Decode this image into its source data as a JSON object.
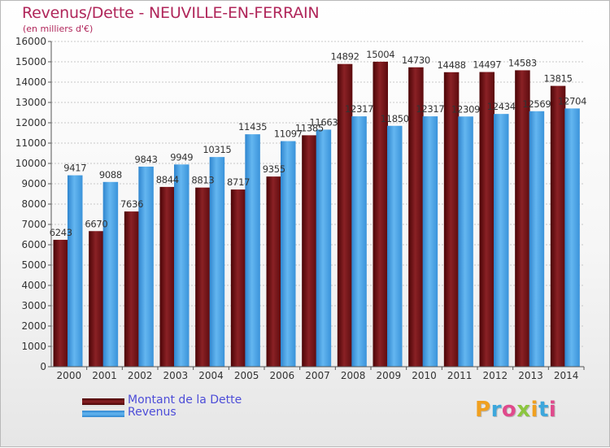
{
  "header": {
    "title": "Revenus/Dette - NEUVILLE-EN-FERRAIN",
    "subtitle": "(en milliers d'€)"
  },
  "brand": "Proxiti",
  "colors": {
    "debt": "#7a1518",
    "revenue": "#4fa6e6",
    "title": "#b0265a",
    "legend_text": "#4d4dd8"
  },
  "chart_data": {
    "type": "bar",
    "title": "Revenus/Dette - NEUVILLE-EN-FERRAIN",
    "subtitle": "(en milliers d'€)",
    "xlabel": "",
    "ylabel": "",
    "ylim": [
      0,
      16000
    ],
    "yticks": [
      0,
      1000,
      2000,
      3000,
      4000,
      5000,
      6000,
      7000,
      8000,
      9000,
      10000,
      11000,
      12000,
      13000,
      14000,
      15000,
      16000
    ],
    "grid": true,
    "legend_position": "bottom-left",
    "categories": [
      "2000",
      "2001",
      "2002",
      "2003",
      "2004",
      "2005",
      "2006",
      "2007",
      "2008",
      "2009",
      "2010",
      "2011",
      "2012",
      "2013",
      "2014"
    ],
    "series": [
      {
        "name": "Montant de la Dette",
        "color": "#7a1518",
        "values": [
          6243,
          6670,
          7636,
          8844,
          8813,
          8717,
          9355,
          11385,
          14892,
          15004,
          14730,
          14488,
          14497,
          14583,
          13815
        ],
        "labels": [
          "6243",
          "6670",
          "7636",
          "8844",
          "8813",
          "8717",
          "9355",
          "11385",
          "14892",
          "15004",
          "14730",
          "14488",
          "14497",
          "14583",
          "13815"
        ]
      },
      {
        "name": "Revenus",
        "color": "#4fa6e6",
        "values": [
          9417,
          9088,
          9843,
          9949,
          10315,
          11435,
          11097,
          11663,
          12317,
          11850,
          12317,
          12309,
          12434,
          12569,
          12704
        ],
        "labels": [
          "9417",
          "9088",
          "9843",
          "9949",
          "10315",
          "11435",
          "11097",
          "11663",
          "12317",
          "11850",
          "12317",
          "12309",
          "12434",
          "12569",
          "12704"
        ]
      }
    ]
  }
}
